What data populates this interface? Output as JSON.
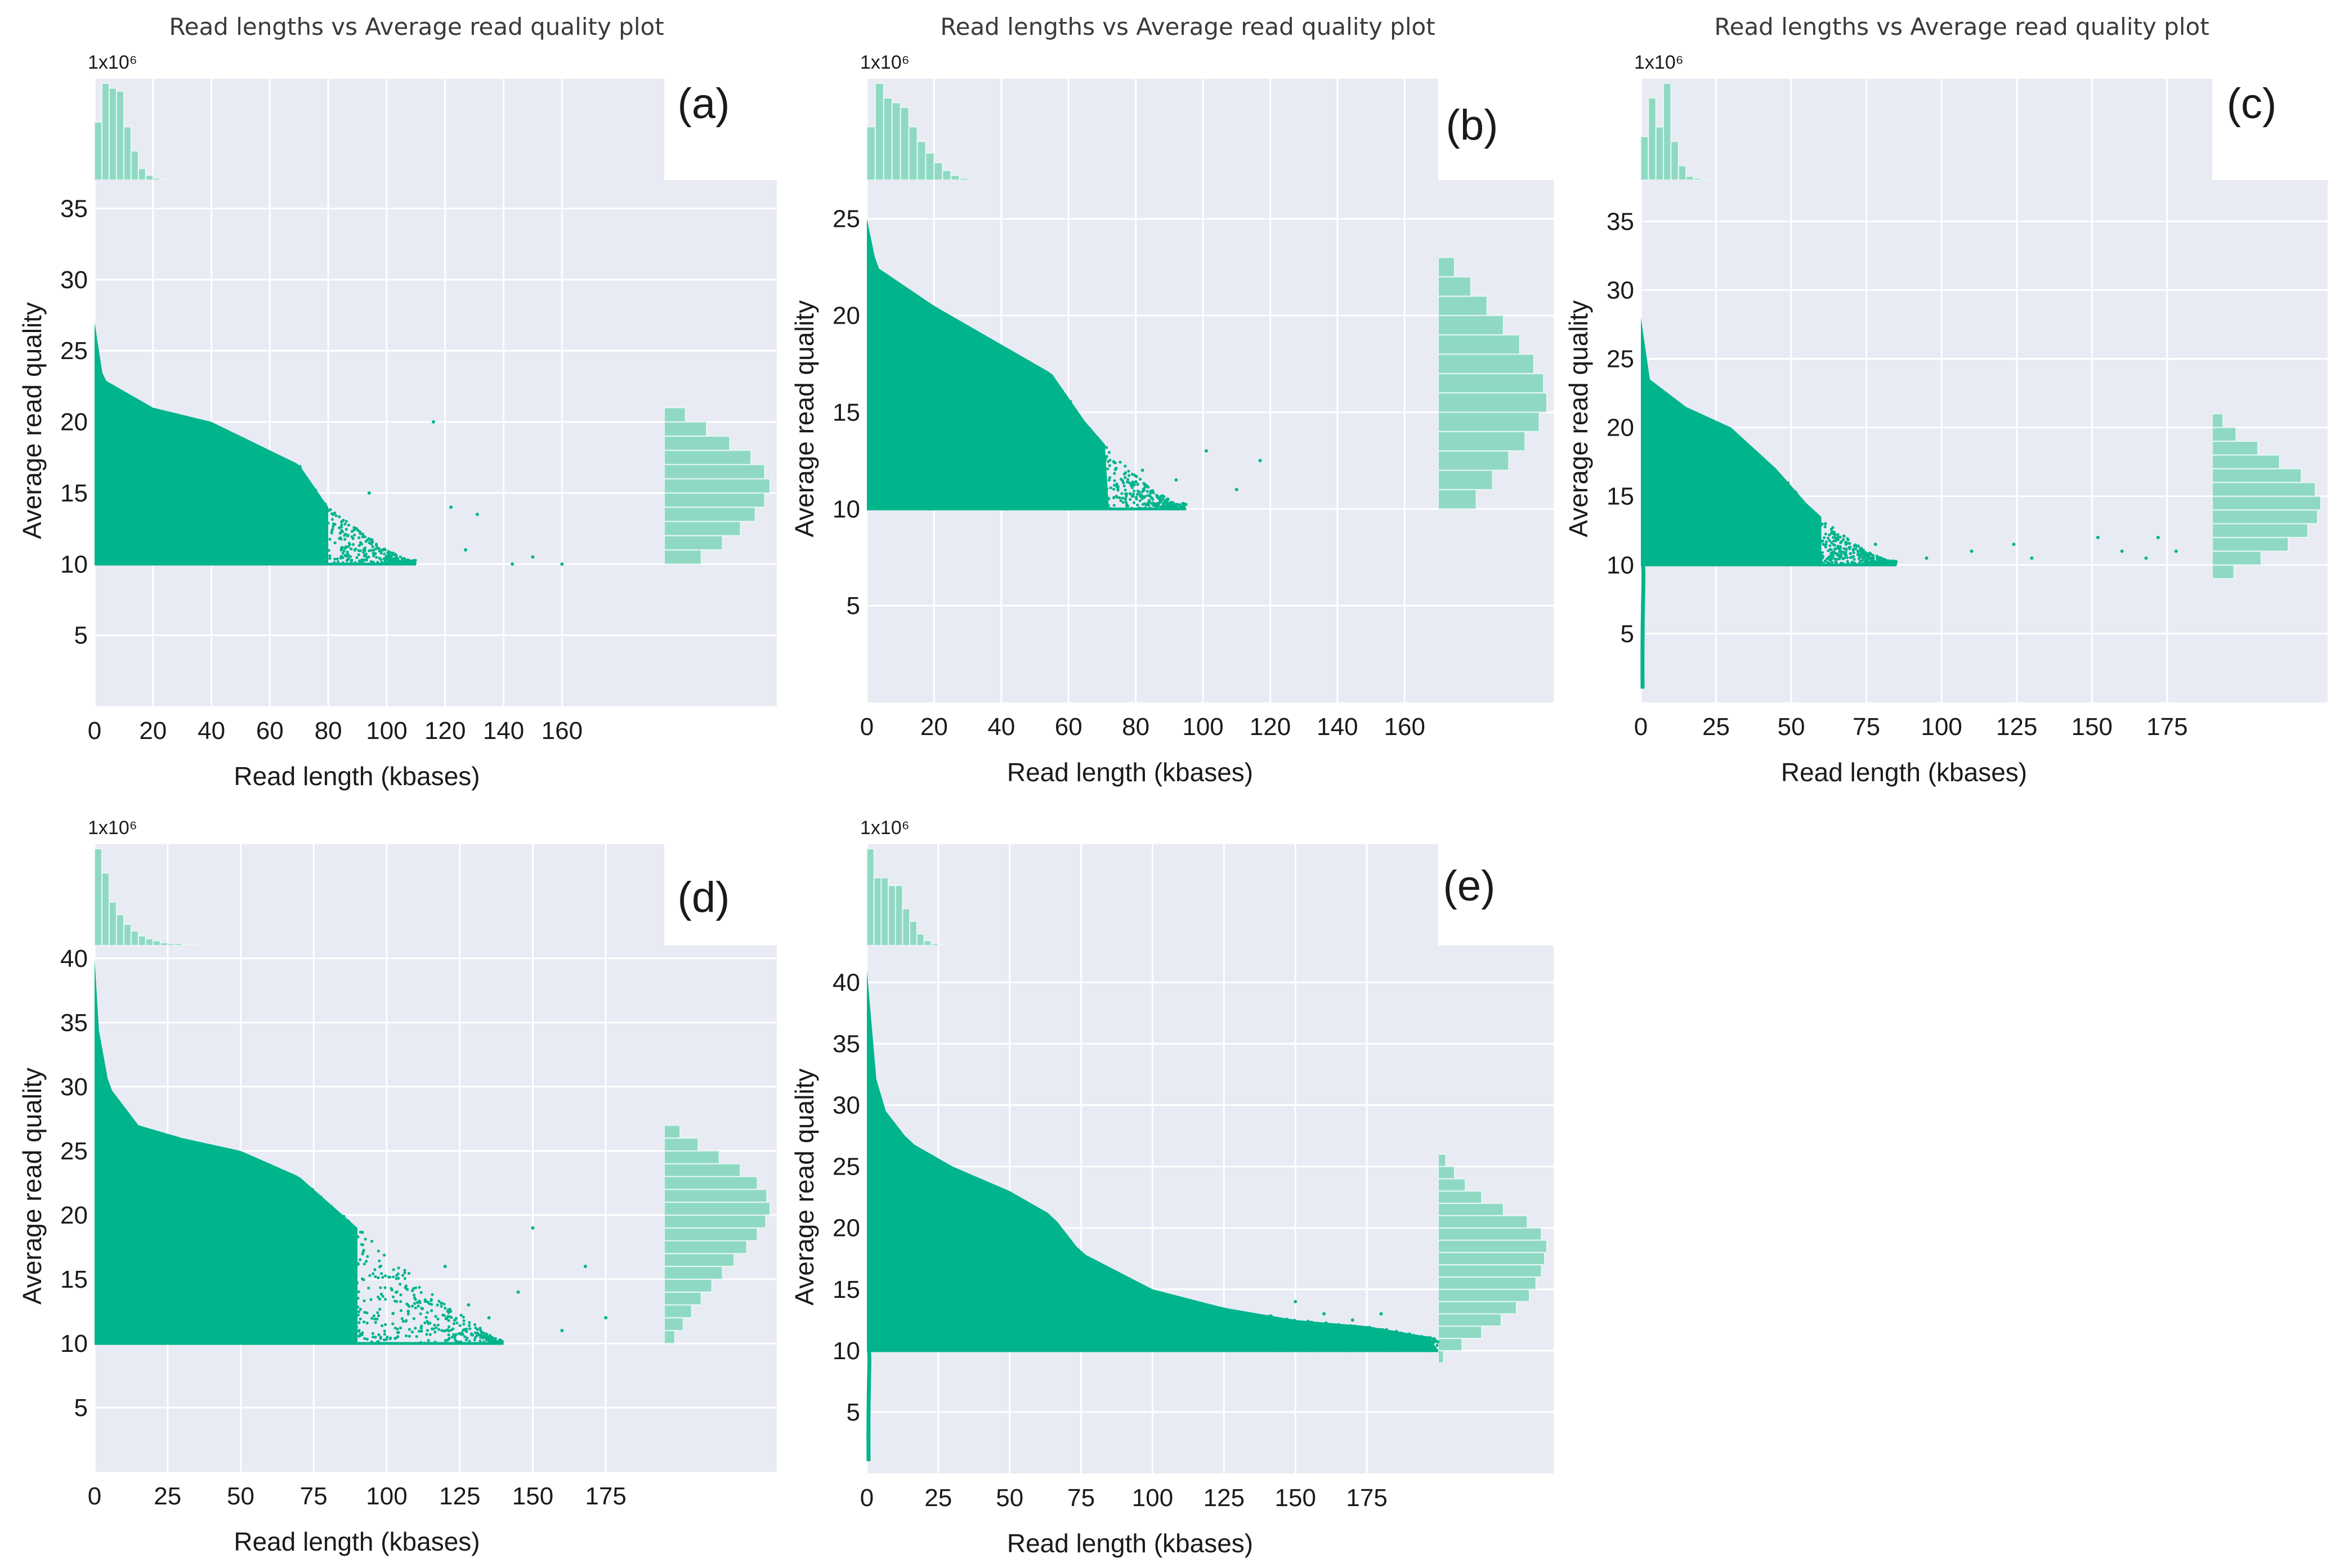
{
  "figure_title": "Read lengths vs Average read quality plot",
  "colors": {
    "plot_bg": "#e8ebf4",
    "grid": "#ffffff",
    "point": "#00b48c",
    "hist": "#8fd9c4",
    "hist_edge": "#e8f7f2",
    "text": "#1a1a1a",
    "title": "#3a3a3a"
  },
  "chart_data": [
    {
      "panel_label": "(a)",
      "type": "scatter",
      "title": "Read lengths vs Average read quality plot",
      "xlabel": "Read length (kbases)",
      "ylabel": "Average read quality",
      "top_hist_scale": "1x10⁶",
      "xlim": [
        0,
        195
      ],
      "ylim": [
        0,
        37
      ],
      "xticks": [
        0,
        20,
        40,
        60,
        80,
        100,
        120,
        140,
        160
      ],
      "yticks": [
        5,
        10,
        15,
        20,
        25,
        30,
        35
      ],
      "floor_q": 10,
      "ridge": [
        [
          0,
          27
        ],
        [
          3,
          23
        ],
        [
          20,
          21
        ],
        [
          40,
          20
        ],
        [
          60,
          18
        ],
        [
          70,
          17
        ],
        [
          80,
          14
        ],
        [
          90,
          12.5
        ],
        [
          100,
          11
        ],
        [
          110,
          10
        ]
      ],
      "spread_to_kb": 80,
      "outliers": [
        [
          94,
          15
        ],
        [
          116,
          20
        ],
        [
          122,
          14
        ],
        [
          127,
          11
        ],
        [
          131,
          13.5
        ],
        [
          143,
          10
        ],
        [
          150,
          10.5
        ],
        [
          160,
          10
        ]
      ],
      "y_hist": [
        [
          10,
          0.35
        ],
        [
          11,
          0.55
        ],
        [
          12,
          0.72
        ],
        [
          13,
          0.86
        ],
        [
          14,
          0.95
        ],
        [
          15,
          1.0
        ],
        [
          16,
          0.95
        ],
        [
          17,
          0.82
        ],
        [
          18,
          0.62
        ],
        [
          19,
          0.4
        ],
        [
          20,
          0.2
        ]
      ],
      "x_hist": [
        [
          0,
          0.6
        ],
        [
          2.5,
          1.0
        ],
        [
          5,
          0.95
        ],
        [
          7.5,
          0.92
        ],
        [
          10,
          0.55
        ],
        [
          12.5,
          0.3
        ],
        [
          15,
          0.12
        ],
        [
          17.5,
          0.05
        ],
        [
          20,
          0.02
        ],
        [
          22.5,
          0.01
        ]
      ]
    },
    {
      "panel_label": "(b)",
      "type": "scatter",
      "title": "Read lengths vs Average read quality plot",
      "xlabel": "Read length (kbases)",
      "ylabel": "Average read quality",
      "top_hist_scale": "1x10⁶",
      "xlim": [
        0,
        170
      ],
      "ylim": [
        0,
        27
      ],
      "xticks": [
        0,
        20,
        40,
        60,
        80,
        100,
        120,
        140,
        160
      ],
      "yticks": [
        5,
        10,
        15,
        20,
        25
      ],
      "floor_q": 10,
      "ridge": [
        [
          0,
          25
        ],
        [
          3,
          22.5
        ],
        [
          20,
          20.5
        ],
        [
          40,
          18.5
        ],
        [
          55,
          17
        ],
        [
          65,
          14.5
        ],
        [
          75,
          12.5
        ],
        [
          85,
          11
        ],
        [
          95,
          10
        ]
      ],
      "spread_to_kb": 72,
      "outliers": [
        [
          82,
          12
        ],
        [
          92,
          11.5
        ],
        [
          101,
          13
        ],
        [
          110,
          11
        ],
        [
          117,
          12.5
        ]
      ],
      "y_hist": [
        [
          10,
          0.35
        ],
        [
          11,
          0.5
        ],
        [
          12,
          0.65
        ],
        [
          13,
          0.8
        ],
        [
          14,
          0.93
        ],
        [
          15,
          1.0
        ],
        [
          16,
          0.97
        ],
        [
          17,
          0.88
        ],
        [
          18,
          0.75
        ],
        [
          19,
          0.6
        ],
        [
          20,
          0.45
        ],
        [
          21,
          0.3
        ],
        [
          22,
          0.15
        ]
      ],
      "x_hist": [
        [
          0,
          0.55
        ],
        [
          2.5,
          1.0
        ],
        [
          5,
          0.85
        ],
        [
          7.5,
          0.8
        ],
        [
          10,
          0.75
        ],
        [
          12.5,
          0.55
        ],
        [
          15,
          0.4
        ],
        [
          17.5,
          0.28
        ],
        [
          20,
          0.18
        ],
        [
          22.5,
          0.1
        ],
        [
          25,
          0.05
        ],
        [
          27.5,
          0.02
        ]
      ]
    },
    {
      "panel_label": "(c)",
      "type": "scatter",
      "title": "Read lengths vs Average read quality plot",
      "xlabel": "Read length (kbases)",
      "ylabel": "Average read quality",
      "top_hist_scale": "1x10⁶",
      "xlim": [
        0,
        190
      ],
      "ylim": [
        0,
        38
      ],
      "xticks": [
        0,
        25,
        50,
        75,
        100,
        125,
        150,
        175
      ],
      "yticks": [
        5,
        10,
        15,
        20,
        25,
        30,
        35
      ],
      "floor_q": 10,
      "low_tail": true,
      "ridge": [
        [
          0,
          28
        ],
        [
          3,
          23.5
        ],
        [
          15,
          21.5
        ],
        [
          30,
          20
        ],
        [
          45,
          17
        ],
        [
          55,
          14.5
        ],
        [
          65,
          12.5
        ],
        [
          75,
          11
        ],
        [
          85,
          10
        ]
      ],
      "spread_to_kb": 60,
      "outliers": [
        [
          78,
          11.5
        ],
        [
          95,
          10.5
        ],
        [
          110,
          11
        ],
        [
          124,
          11.5
        ],
        [
          130,
          10.5
        ],
        [
          152,
          12
        ],
        [
          160,
          11
        ],
        [
          168,
          10.5
        ],
        [
          172,
          12
        ],
        [
          178,
          11
        ]
      ],
      "y_hist": [
        [
          9,
          0.2
        ],
        [
          10,
          0.45
        ],
        [
          11,
          0.7
        ],
        [
          12,
          0.88
        ],
        [
          13,
          0.97
        ],
        [
          14,
          1.0
        ],
        [
          15,
          0.95
        ],
        [
          16,
          0.82
        ],
        [
          17,
          0.62
        ],
        [
          18,
          0.42
        ],
        [
          19,
          0.22
        ],
        [
          20,
          0.1
        ]
      ],
      "x_hist": [
        [
          0,
          0.45
        ],
        [
          2.5,
          0.85
        ],
        [
          5,
          0.55
        ],
        [
          7.5,
          1.0
        ],
        [
          10,
          0.4
        ],
        [
          12.5,
          0.15
        ],
        [
          15,
          0.04
        ],
        [
          17.5,
          0.02
        ],
        [
          20,
          0.01
        ]
      ]
    },
    {
      "panel_label": "(d)",
      "type": "scatter",
      "title": "",
      "xlabel": "Read length (kbases)",
      "ylabel": "Average read quality",
      "top_hist_scale": "1x10⁶",
      "xlim": [
        0,
        195
      ],
      "ylim": [
        0,
        41
      ],
      "xticks": [
        0,
        25,
        50,
        75,
        100,
        125,
        150,
        175
      ],
      "yticks": [
        5,
        10,
        15,
        20,
        25,
        30,
        35,
        40
      ],
      "floor_q": 10,
      "ridge": [
        [
          0,
          40
        ],
        [
          1,
          35
        ],
        [
          5,
          30
        ],
        [
          15,
          27
        ],
        [
          30,
          26
        ],
        [
          50,
          25
        ],
        [
          70,
          23
        ],
        [
          85,
          20
        ],
        [
          100,
          17
        ],
        [
          115,
          14
        ],
        [
          130,
          11.5
        ],
        [
          140,
          10
        ]
      ],
      "spread_to_kb": 90,
      "outliers": [
        [
          120,
          16
        ],
        [
          128,
          13
        ],
        [
          135,
          12
        ],
        [
          145,
          14
        ],
        [
          150,
          19
        ],
        [
          160,
          11
        ],
        [
          168,
          16
        ],
        [
          175,
          12
        ]
      ],
      "y_hist": [
        [
          10,
          0.1
        ],
        [
          11,
          0.18
        ],
        [
          12,
          0.26
        ],
        [
          13,
          0.35
        ],
        [
          14,
          0.45
        ],
        [
          15,
          0.55
        ],
        [
          16,
          0.66
        ],
        [
          17,
          0.78
        ],
        [
          18,
          0.88
        ],
        [
          19,
          0.96
        ],
        [
          20,
          1.0
        ],
        [
          21,
          0.97
        ],
        [
          22,
          0.88
        ],
        [
          23,
          0.72
        ],
        [
          24,
          0.52
        ],
        [
          25,
          0.32
        ],
        [
          26,
          0.15
        ]
      ],
      "x_hist": [
        [
          0,
          1.0
        ],
        [
          2.5,
          0.75
        ],
        [
          5,
          0.45
        ],
        [
          7.5,
          0.32
        ],
        [
          10,
          0.22
        ],
        [
          12.5,
          0.15
        ],
        [
          15,
          0.1
        ],
        [
          17.5,
          0.07
        ],
        [
          20,
          0.05
        ],
        [
          22.5,
          0.03
        ],
        [
          25,
          0.02
        ],
        [
          27.5,
          0.02
        ],
        [
          30,
          0.01
        ],
        [
          32.5,
          0.01
        ]
      ]
    },
    {
      "panel_label": "(e)",
      "type": "scatter",
      "title": "",
      "xlabel": "Read length (kbases)",
      "ylabel": "Average read quality",
      "top_hist_scale": "1x10⁶",
      "xlim": [
        0,
        200
      ],
      "ylim": [
        0,
        43
      ],
      "xticks": [
        0,
        25,
        50,
        75,
        100,
        125,
        150,
        175
      ],
      "yticks": [
        5,
        10,
        15,
        20,
        25,
        30,
        35,
        40
      ],
      "floor_q": 10,
      "low_tail": true,
      "ridge": [
        [
          0,
          41
        ],
        [
          1,
          35
        ],
        [
          5,
          30
        ],
        [
          15,
          27
        ],
        [
          30,
          25
        ],
        [
          50,
          23
        ],
        [
          65,
          21
        ],
        [
          75,
          18
        ],
        [
          100,
          15
        ],
        [
          125,
          13.5
        ],
        [
          150,
          12.5
        ],
        [
          175,
          12
        ],
        [
          200,
          11
        ]
      ],
      "spread_to_kb": 200,
      "outliers": [
        [
          150,
          14
        ],
        [
          160,
          13
        ],
        [
          170,
          12.5
        ],
        [
          180,
          13
        ],
        [
          190,
          11
        ]
      ],
      "y_hist": [
        [
          9,
          0.05
        ],
        [
          10,
          0.22
        ],
        [
          11,
          0.4
        ],
        [
          12,
          0.58
        ],
        [
          13,
          0.72
        ],
        [
          14,
          0.84
        ],
        [
          15,
          0.9
        ],
        [
          16,
          0.95
        ],
        [
          17,
          0.98
        ],
        [
          18,
          1.0
        ],
        [
          19,
          0.95
        ],
        [
          20,
          0.82
        ],
        [
          21,
          0.6
        ],
        [
          22,
          0.4
        ],
        [
          23,
          0.25
        ],
        [
          24,
          0.15
        ],
        [
          25,
          0.07
        ]
      ],
      "x_hist": [
        [
          0,
          1.0
        ],
        [
          2.5,
          0.7
        ],
        [
          5,
          0.7
        ],
        [
          7.5,
          0.62
        ],
        [
          10,
          0.62
        ],
        [
          12.5,
          0.38
        ],
        [
          15,
          0.25
        ],
        [
          17.5,
          0.12
        ],
        [
          20,
          0.05
        ],
        [
          22.5,
          0.02
        ],
        [
          25,
          0.01
        ]
      ]
    }
  ]
}
